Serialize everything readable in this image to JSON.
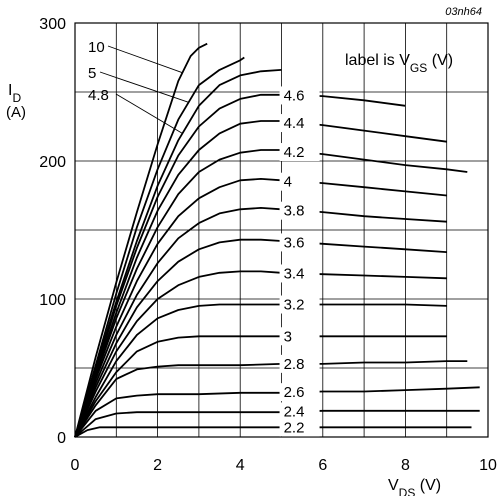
{
  "figure_id": "03nh64",
  "chart_data": {
    "type": "line",
    "title": "",
    "xlabel_main": "V",
    "xlabel_sub": "DS",
    "xlabel_unit": " (V)",
    "ylabel_main": "I",
    "ylabel_sub": "D",
    "ylabel_unit": "(A)",
    "legend_note": "label is V",
    "legend_note_sub": "GS",
    "legend_note_unit": " (V)",
    "xlim": [
      0,
      10
    ],
    "ylim": [
      0,
      300
    ],
    "x_ticks": [
      0,
      2,
      4,
      6,
      8,
      10
    ],
    "y_ticks": [
      0,
      100,
      200,
      300
    ],
    "x_tick_labels": [
      "0",
      "2",
      "4",
      "6",
      "8",
      "10"
    ],
    "y_tick_labels": [
      "0",
      "100",
      "200",
      "300"
    ],
    "grid": true,
    "series": [
      {
        "name": "10",
        "x": [
          0,
          0.5,
          1,
          1.5,
          2,
          2.5,
          2.8,
          3.0,
          3.2
        ],
        "y": [
          0,
          58,
          112,
          163,
          212,
          258,
          276,
          282,
          285
        ]
      },
      {
        "name": "5",
        "x": [
          0,
          0.5,
          1,
          1.5,
          2,
          2.5,
          3.0,
          3.5,
          4.0,
          4.1
        ],
        "y": [
          0,
          52,
          104,
          152,
          194,
          230,
          255,
          266,
          273,
          275
        ]
      },
      {
        "name": "4.8",
        "x": [
          0,
          0.5,
          1,
          1.5,
          2,
          2.5,
          3.0,
          3.5,
          4.0,
          4.5,
          5.0
        ],
        "y": [
          0,
          50,
          98,
          142,
          182,
          215,
          240,
          255,
          262,
          265,
          266
        ]
      },
      {
        "name": "4.6",
        "x": [
          0,
          0.5,
          1,
          1.5,
          2,
          2.5,
          3.0,
          3.5,
          4.0,
          4.5,
          5.0,
          6.0,
          7.0,
          8.0
        ],
        "y": [
          0,
          48,
          95,
          137,
          174,
          204,
          225,
          238,
          245,
          248,
          248,
          247,
          244,
          240
        ]
      },
      {
        "name": "4.4",
        "x": [
          0,
          0.5,
          1,
          1.5,
          2,
          2.5,
          3.0,
          3.5,
          4.0,
          4.5,
          5.0,
          6.0,
          7.0,
          8.0,
          9.0
        ],
        "y": [
          0,
          46,
          90,
          130,
          164,
          190,
          208,
          220,
          227,
          229,
          229,
          226,
          222,
          218,
          214
        ]
      },
      {
        "name": "4.2",
        "x": [
          0,
          0.5,
          1,
          1.5,
          2,
          2.5,
          3.0,
          3.5,
          4.0,
          4.5,
          5.0,
          6.0,
          7.0,
          8.0,
          9.0,
          9.5
        ],
        "y": [
          0,
          44,
          86,
          122,
          152,
          176,
          192,
          201,
          206,
          208,
          208,
          205,
          201,
          197,
          194,
          192
        ]
      },
      {
        "name": "4",
        "x": [
          0,
          0.5,
          1,
          1.5,
          2,
          2.5,
          3.0,
          3.5,
          4.0,
          4.5,
          5.0,
          6.0,
          7.0,
          8.0,
          9.0
        ],
        "y": [
          0,
          42,
          80,
          113,
          140,
          160,
          173,
          181,
          186,
          187,
          186,
          184,
          181,
          178,
          175
        ]
      },
      {
        "name": "3.8",
        "x": [
          0,
          0.5,
          1,
          1.5,
          2,
          2.5,
          3.0,
          3.5,
          4.0,
          4.5,
          5.0,
          6.0,
          7.0,
          8.0,
          9.0
        ],
        "y": [
          0,
          39,
          74,
          103,
          126,
          144,
          155,
          162,
          165,
          166,
          165,
          163,
          160,
          158,
          156
        ]
      },
      {
        "name": "3.6",
        "x": [
          0,
          0.5,
          1,
          1.5,
          2,
          2.5,
          3.0,
          3.5,
          4.0,
          4.5,
          5.0,
          6.0,
          7.0,
          8.0,
          9.0
        ],
        "y": [
          0,
          36,
          68,
          94,
          113,
          127,
          136,
          141,
          143,
          143,
          142,
          140,
          138,
          136,
          134
        ]
      },
      {
        "name": "3.4",
        "x": [
          0,
          0.5,
          1,
          1.5,
          2,
          2.5,
          3.0,
          3.5,
          4.0,
          4.5,
          5.0,
          6.0,
          7.0,
          8.0,
          9.0
        ],
        "y": [
          0,
          33,
          62,
          84,
          100,
          110,
          116,
          119,
          120,
          120,
          119,
          118,
          117,
          116,
          115
        ]
      },
      {
        "name": "3.2",
        "x": [
          0,
          0.5,
          1,
          1.5,
          2,
          2.5,
          3.0,
          3.5,
          4.0,
          5.0,
          6.0,
          7.0,
          8.0,
          9.0
        ],
        "y": [
          0,
          29,
          55,
          74,
          86,
          92,
          95,
          96,
          96,
          96,
          96,
          96,
          96,
          95
        ]
      },
      {
        "name": "3",
        "x": [
          0,
          0.5,
          1,
          1.5,
          2,
          2.5,
          3.0,
          4.0,
          5.0,
          6.0,
          7.0,
          8.0,
          9.0
        ],
        "y": [
          0,
          26,
          47,
          62,
          69,
          72,
          73,
          73,
          73,
          73,
          73,
          73,
          73
        ]
      },
      {
        "name": "2.8",
        "x": [
          0,
          0.5,
          1,
          1.5,
          2,
          2.5,
          3.0,
          4.0,
          5.0,
          6.0,
          7.0,
          8.0,
          9.0,
          9.5
        ],
        "y": [
          0,
          23,
          42,
          49,
          51,
          52,
          52,
          52,
          53,
          53,
          54,
          54,
          55,
          55
        ]
      },
      {
        "name": "2.6",
        "x": [
          0,
          0.5,
          1,
          1.5,
          2,
          3.0,
          4.0,
          5.0,
          6.0,
          7.0,
          8.0,
          9.0,
          9.8
        ],
        "y": [
          0,
          19,
          28,
          30,
          31,
          31,
          32,
          32,
          33,
          33,
          34,
          35,
          36
        ]
      },
      {
        "name": "2.4",
        "x": [
          0,
          0.5,
          1,
          1.5,
          2,
          3.0,
          4.0,
          5.0,
          6.0,
          7.0,
          8.0,
          9.0,
          9.8
        ],
        "y": [
          0,
          13,
          17,
          18,
          18,
          18,
          18,
          18,
          19,
          19,
          19,
          19,
          19
        ]
      },
      {
        "name": "2.2",
        "x": [
          0,
          0.3,
          0.6,
          1,
          2,
          3.0,
          4.0,
          5.0,
          6.0,
          7.0,
          8.0,
          9.0,
          9.6
        ],
        "y": [
          0,
          5,
          7,
          7,
          7,
          7,
          7,
          7,
          7,
          7,
          7,
          7,
          7
        ]
      }
    ],
    "label_order_in_bracket": [
      "4.6",
      "4.4",
      "4.2",
      "4",
      "3.8",
      "3.6",
      "3.4",
      "3.2",
      "3",
      "2.8",
      "2.6",
      "2.4",
      "2.2"
    ],
    "label_order_top_left": [
      "10",
      "5",
      "4.8"
    ]
  }
}
